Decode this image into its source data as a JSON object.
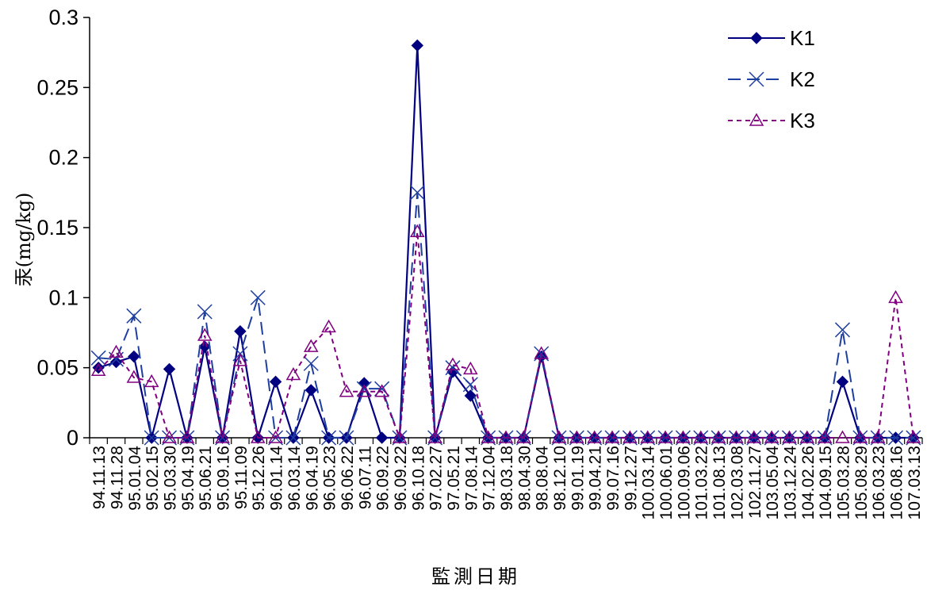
{
  "chart_data": {
    "type": "line",
    "title": "",
    "xlabel": "監測日期",
    "ylabel": "汞(mg/kg)",
    "ylim": [
      0,
      0.3
    ],
    "yticks": [
      "0",
      "0.05",
      "0.1",
      "0.15",
      "0.2",
      "0.25",
      "0.3"
    ],
    "ytick_values": [
      0,
      0.05,
      0.1,
      0.15,
      0.2,
      0.25,
      0.3
    ],
    "grid": false,
    "legend_position": "top-right",
    "categories": [
      "94.11.13",
      "94.11.28",
      "95.01.04",
      "95.02.15",
      "95.03.30",
      "95.04.19",
      "95.06.21",
      "95.09.16",
      "95.11.09",
      "95.12.26",
      "96.01.14",
      "96.03.14",
      "96.04.19",
      "96.05.23",
      "96.06.22",
      "96.07.11",
      "96.09.22",
      "96.09.22",
      "96.10.18",
      "97.02.27",
      "97.05.21",
      "97.08.14",
      "97.12.04",
      "98.03.18",
      "98.04.30",
      "98.08.04",
      "98.12.10",
      "99.01.19",
      "99.04.21",
      "99.07.16",
      "99.12.27",
      "100.03.14",
      "100.06.01",
      "100.09.06",
      "101.03.22",
      "101.08.13",
      "102.03.08",
      "102.11.27",
      "103.05.04",
      "103.12.24",
      "104.02.26",
      "104.09.15",
      "105.03.28",
      "105.08.29",
      "106.03.23",
      "106.08.16",
      "107.03.13"
    ],
    "series": [
      {
        "name": "K1",
        "color": "#000080",
        "dash": "solid",
        "marker": "diamond",
        "values": [
          0.05,
          0.054,
          0.058,
          0,
          0.049,
          0,
          0.065,
          0,
          0.076,
          0,
          0.04,
          0,
          0.034,
          0,
          0,
          0.039,
          0,
          0,
          0.28,
          0,
          0.047,
          0.03,
          0,
          0,
          0,
          0.058,
          0,
          0,
          0,
          0,
          0,
          0,
          0,
          0,
          0,
          0,
          0,
          0,
          0,
          0,
          0,
          0,
          0.04,
          0,
          0,
          0,
          0
        ]
      },
      {
        "name": "K2",
        "color": "#1f3fa0",
        "dash": "long-dash",
        "marker": "star",
        "values": [
          0.057,
          0.056,
          0.087,
          0,
          0,
          0,
          0.09,
          0,
          0.06,
          0.1,
          0,
          0,
          0.053,
          0,
          0,
          0.035,
          0.035,
          0,
          0.175,
          0,
          0.05,
          0.038,
          0,
          0,
          0,
          0.06,
          0,
          0,
          0,
          0,
          0,
          0,
          0,
          0,
          0,
          0,
          0,
          0,
          0,
          0,
          0,
          0,
          0.077,
          0,
          0,
          0,
          0
        ]
      },
      {
        "name": "K3",
        "color": "#800080",
        "dash": "short-dash",
        "marker": "triangle",
        "values": [
          0.048,
          0.061,
          0.043,
          0.04,
          0,
          0,
          0.073,
          0,
          0.055,
          0,
          0,
          0.045,
          0.065,
          0.079,
          0.033,
          0.033,
          0.033,
          0,
          0.147,
          0,
          0.052,
          0.049,
          0,
          0,
          0,
          0.06,
          0,
          0,
          0,
          0,
          0,
          0,
          0,
          0,
          0,
          0,
          0,
          0,
          0,
          0,
          0,
          0,
          0,
          0,
          0,
          0.1,
          0
        ]
      }
    ]
  }
}
